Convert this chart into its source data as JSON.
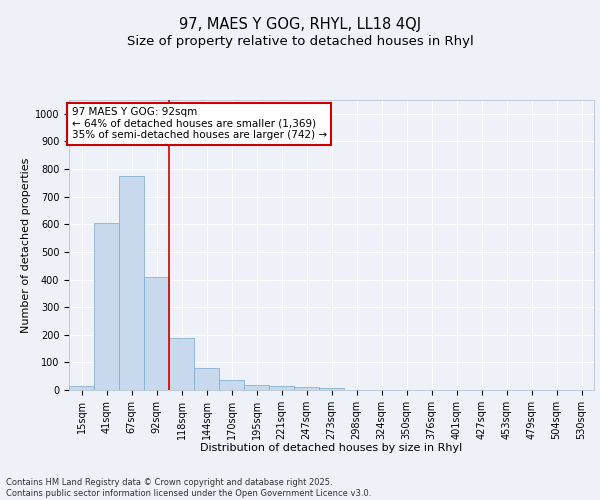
{
  "title1": "97, MAES Y GOG, RHYL, LL18 4QJ",
  "title2": "Size of property relative to detached houses in Rhyl",
  "xlabel": "Distribution of detached houses by size in Rhyl",
  "ylabel": "Number of detached properties",
  "bin_labels": [
    "15sqm",
    "41sqm",
    "67sqm",
    "92sqm",
    "118sqm",
    "144sqm",
    "170sqm",
    "195sqm",
    "221sqm",
    "247sqm",
    "273sqm",
    "298sqm",
    "324sqm",
    "350sqm",
    "376sqm",
    "401sqm",
    "427sqm",
    "453sqm",
    "479sqm",
    "504sqm",
    "530sqm"
  ],
  "bar_values": [
    15,
    605,
    775,
    410,
    190,
    78,
    35,
    18,
    15,
    12,
    8,
    0,
    0,
    0,
    0,
    0,
    0,
    0,
    0,
    0,
    0
  ],
  "bar_color": "#c9d9ed",
  "bar_edge_color": "#7aa8cc",
  "red_line_index": 3,
  "red_line_color": "#cc0000",
  "annotation_line1": "97 MAES Y GOG: 92sqm",
  "annotation_line2": "← 64% of detached houses are smaller (1,369)",
  "annotation_line3": "35% of semi-detached houses are larger (742) →",
  "annotation_box_color": "#ffffff",
  "annotation_box_edge": "#cc0000",
  "ylim": [
    0,
    1050
  ],
  "yticks": [
    0,
    100,
    200,
    300,
    400,
    500,
    600,
    700,
    800,
    900,
    1000
  ],
  "background_color": "#eef2f8",
  "grid_color": "#ffffff",
  "footer": "Contains HM Land Registry data © Crown copyright and database right 2025.\nContains public sector information licensed under the Open Government Licence v3.0.",
  "title_fontsize": 10.5,
  "subtitle_fontsize": 9.5,
  "axis_label_fontsize": 8,
  "tick_fontsize": 7,
  "annotation_fontsize": 7.5,
  "footer_fontsize": 6
}
